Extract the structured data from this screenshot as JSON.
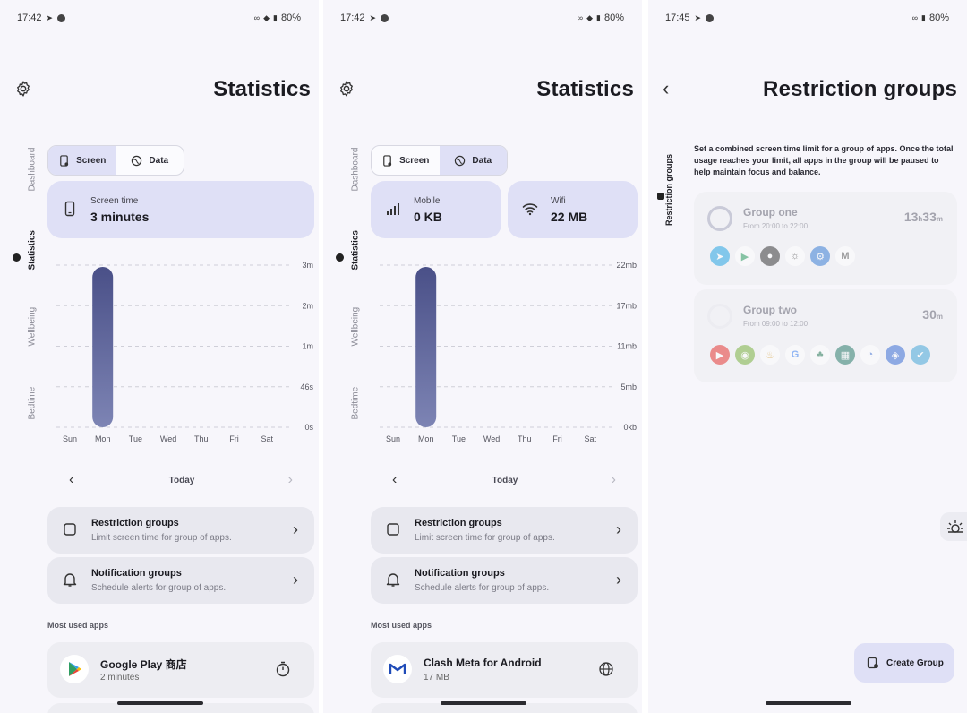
{
  "status": [
    {
      "time": "17:42",
      "battery": "80%"
    },
    {
      "time": "17:42",
      "battery": "80%"
    },
    {
      "time": "17:45",
      "battery": "80%"
    }
  ],
  "stats": {
    "title": "Statistics",
    "rail": [
      "Dashboard",
      "Statistics",
      "Wellbeing",
      "Bedtime"
    ],
    "seg": {
      "screen": "Screen",
      "data": "Data"
    },
    "days": [
      "Sun",
      "Mon",
      "Tue",
      "Wed",
      "Thu",
      "Fri",
      "Sat"
    ],
    "nav_label": "Today",
    "menu": [
      {
        "title": "Restriction groups",
        "sub": "Limit screen time for group of apps."
      },
      {
        "title": "Notification groups",
        "sub": "Schedule alerts for group of apps."
      }
    ],
    "most_used": "Most used apps"
  },
  "screen_view": {
    "card": {
      "label": "Screen time",
      "value": "3 minutes"
    },
    "chart_data": {
      "type": "bar",
      "categories": [
        "Sun",
        "Mon",
        "Tue",
        "Wed",
        "Thu",
        "Fri",
        "Sat"
      ],
      "values": [
        0,
        3,
        0,
        0,
        0,
        0,
        0
      ],
      "yticks": [
        "3m",
        "2m",
        "1m",
        "46s",
        "0s"
      ],
      "ylim": [
        0,
        3
      ]
    },
    "app": {
      "name": "Google Play 商店",
      "sub": "2 minutes"
    }
  },
  "data_view": {
    "mobile": {
      "label": "Mobile",
      "value": "0 KB"
    },
    "wifi": {
      "label": "Wifi",
      "value": "22 MB"
    },
    "chart_data": {
      "type": "bar",
      "categories": [
        "Sun",
        "Mon",
        "Tue",
        "Wed",
        "Thu",
        "Fri",
        "Sat"
      ],
      "values": [
        0,
        22,
        0,
        0,
        0,
        0,
        0
      ],
      "yticks": [
        "22mb",
        "17mb",
        "11mb",
        "5mb",
        "0kb"
      ],
      "ylim": [
        0,
        22
      ]
    },
    "app": {
      "name": "Clash Meta for Android",
      "sub": "17 MB"
    }
  },
  "groups": {
    "title": "Restriction groups",
    "rail_label": "Restriction groups",
    "description": "Set a combined screen time limit for a group of apps. Once the total usage reaches your limit, all apps in the group will be paused to help maintain focus and balance.",
    "items": [
      {
        "name": "Group one",
        "schedule": "From 20:00 to 22:00",
        "time_h": "13",
        "time_h_unit": "h",
        "time_m": "33",
        "time_m_unit": "m"
      },
      {
        "name": "Group two",
        "schedule": "From 09:00 to 12:00",
        "time_h": "",
        "time_h_unit": "",
        "time_m": "30",
        "time_m_unit": "m"
      }
    ],
    "create_label": "Create Group"
  },
  "colors": {
    "accent": "#dfe0f6",
    "bar_top": "#4a5088",
    "bar_bottom": "#7d84b4"
  }
}
